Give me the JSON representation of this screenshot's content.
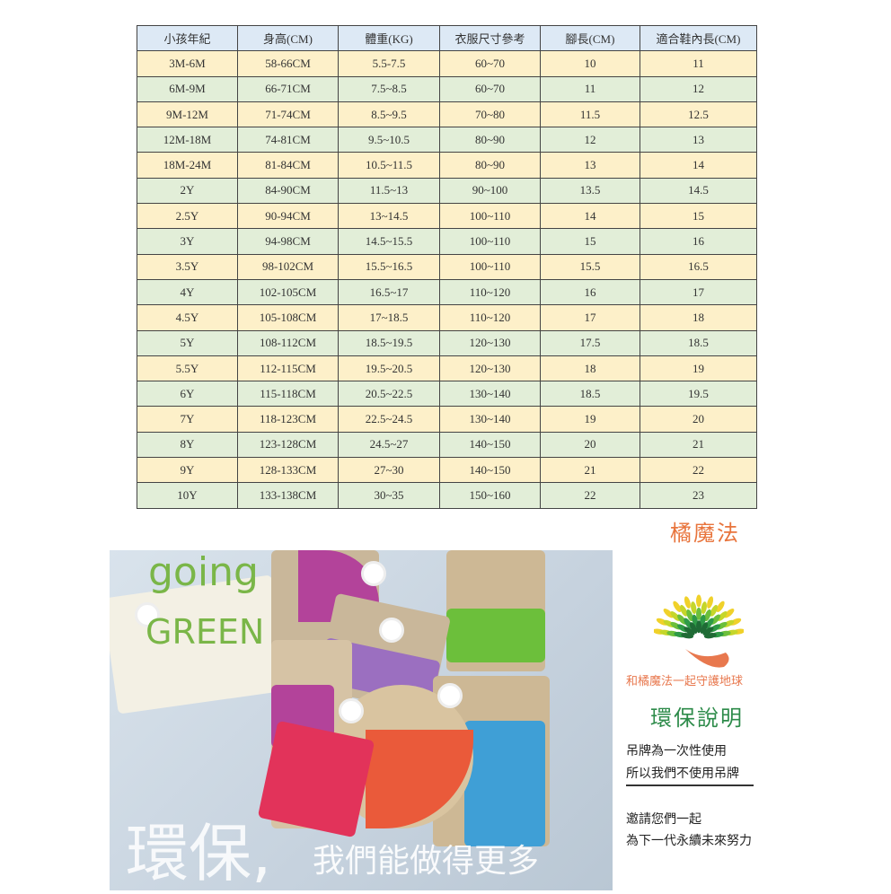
{
  "table": {
    "headers": [
      "小孩年紀",
      "身高(CM)",
      "體重(KG)",
      "衣服尺寸參考",
      "腳長(CM)",
      "適合鞋內長(CM)"
    ],
    "rows": [
      [
        "3M-6M",
        "58-66CM",
        "5.5-7.5",
        "60~70",
        "10",
        "11"
      ],
      [
        "6M-9M",
        "66-71CM",
        "7.5~8.5",
        "60~70",
        "11",
        "12"
      ],
      [
        "9M-12M",
        "71-74CM",
        "8.5~9.5",
        "70~80",
        "11.5",
        "12.5"
      ],
      [
        "12M-18M",
        "74-81CM",
        "9.5~10.5",
        "80~90",
        "12",
        "13"
      ],
      [
        "18M-24M",
        "81-84CM",
        "10.5~11.5",
        "80~90",
        "13",
        "14"
      ],
      [
        "2Y",
        "84-90CM",
        "11.5~13",
        "90~100",
        "13.5",
        "14.5"
      ],
      [
        "2.5Y",
        "90-94CM",
        "13~14.5",
        "100~110",
        "14",
        "15"
      ],
      [
        "3Y",
        "94-98CM",
        "14.5~15.5",
        "100~110",
        "15",
        "16"
      ],
      [
        "3.5Y",
        "98-102CM",
        "15.5~16.5",
        "100~110",
        "15.5",
        "16.5"
      ],
      [
        "4Y",
        "102-105CM",
        "16.5~17",
        "110~120",
        "16",
        "17"
      ],
      [
        "4.5Y",
        "105-108CM",
        "17~18.5",
        "110~120",
        "17",
        "18"
      ],
      [
        "5Y",
        "108-112CM",
        "18.5~19.5",
        "120~130",
        "17.5",
        "18.5"
      ],
      [
        "5.5Y",
        "112-115CM",
        "19.5~20.5",
        "120~130",
        "18",
        "19"
      ],
      [
        "6Y",
        "115-118CM",
        "20.5~22.5",
        "130~140",
        "18.5",
        "19.5"
      ],
      [
        "7Y",
        "118-123CM",
        "22.5~24.5",
        "130~140",
        "19",
        "20"
      ],
      [
        "8Y",
        "123-128CM",
        "24.5~27",
        "140~150",
        "20",
        "21"
      ],
      [
        "9Y",
        "128-133CM",
        "27~30",
        "140~150",
        "21",
        "22"
      ],
      [
        "10Y",
        "133-138CM",
        "30~35",
        "150~160",
        "22",
        "23"
      ]
    ]
  },
  "brand": "橘魔法",
  "photo": {
    "going": "going",
    "green": "GREEN",
    "big": "環保,",
    "small": "我們能做得更多"
  },
  "side": {
    "slogan": "和橘魔法一起守護地球",
    "title": "環保說明",
    "line1": "吊牌為一次性使用",
    "line2": "所以我們不使用吊牌",
    "line3": "邀請您們一起",
    "line4": "為下一代永續未來努力"
  },
  "colors": {
    "header": "#dde9f5",
    "row_yellow": "#fdf0c9",
    "row_green": "#e2eed8",
    "brand": "#e8743c",
    "green_text": "#7ab648"
  }
}
